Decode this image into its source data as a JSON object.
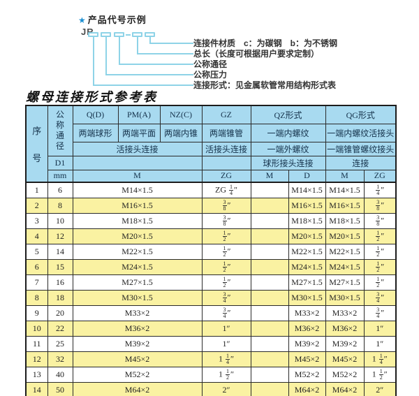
{
  "diagram": {
    "star": "★",
    "title": "产品代号示例",
    "prefix": "JR",
    "labels": [
      "连接件材质　c：为碳钢　b：为不锈钢",
      "总长（长度可根据用户要求定制）",
      "公称通径",
      "公称压力",
      "连接形式：见金属软管常用结构形式表"
    ]
  },
  "table": {
    "title": "螺母连接形式参考表",
    "header": {
      "seq_top": "序",
      "seq_bottom": "号",
      "dn": "公称通径",
      "d1": "D1",
      "mm": "mm",
      "q": "Q(D)",
      "pm": "PM(A)",
      "nz": "NZ(C)",
      "gz": "GZ",
      "qz": "QZ形式",
      "qg": "QG形式",
      "q_desc": "两端球形",
      "pm_desc": "两端平面",
      "nz_desc": "两端内锥",
      "gz_desc": "两端锥管",
      "qz_desc1": "一端内螺纹",
      "qg_desc1": "一端内螺纹活接头",
      "union_conn": "活接头连接",
      "gz_conn": "活接头连接",
      "qz_desc2": "一端外螺纹",
      "qg_desc2": "一端锥管螺纹接头",
      "qz_conn": "球形接头连接",
      "qg_conn": "连接",
      "m": "M",
      "zg": "ZG",
      "qz_m": "M",
      "qz_d": "D",
      "qg_m": "M",
      "qg_zg": "ZG"
    },
    "rows": [
      [
        "1",
        "6",
        "M14×1.5",
        "ZG 1/4″",
        "",
        "M14×1.5",
        "M14×1.5",
        "1/4″"
      ],
      [
        "2",
        "8",
        "M16×1.5",
        "3/8″",
        "",
        "M16×1.5",
        "M16×1.5",
        "3/8″"
      ],
      [
        "3",
        "10",
        "M18×1.5",
        "3/8″",
        "",
        "M18×1.5",
        "M18×1.5",
        "3/8″"
      ],
      [
        "4",
        "12",
        "M20×1.5",
        "1/2″",
        "",
        "M20×1.5",
        "M20×1.5",
        "1/2″"
      ],
      [
        "5",
        "14",
        "M22×1.5",
        "1/2″",
        "",
        "M22×1.5",
        "M22×1.5",
        "1/2″"
      ],
      [
        "6",
        "15",
        "M24×1.5",
        "1/2″",
        "",
        "M24×1.5",
        "M24×1.5",
        "1/2″"
      ],
      [
        "7",
        "16",
        "M27×1.5",
        "1/2″",
        "",
        "M27×1.5",
        "M27×1.5",
        "1/2″"
      ],
      [
        "8",
        "18",
        "M30×1.5",
        "3/4″",
        "",
        "M30×1.5",
        "M30×1.5",
        "3/4″"
      ],
      [
        "9",
        "20",
        "M33×2",
        "3/4″",
        "",
        "M33×2",
        "M33×2",
        "3/4″"
      ],
      [
        "10",
        "22",
        "M36×2",
        "1″",
        "",
        "M36×2",
        "M36×2",
        "1″"
      ],
      [
        "11",
        "25",
        "M39×2",
        "1″",
        "",
        "M39×2",
        "M39×2",
        "1″"
      ],
      [
        "12",
        "32",
        "M45×2",
        "1 1/4″",
        "",
        "M45×2",
        "M45×2",
        "1 1/4″"
      ],
      [
        "13",
        "40",
        "M52×2",
        "1 1/2″",
        "",
        "M52×2",
        "M52×2",
        "1 1/2″"
      ],
      [
        "14",
        "50",
        "M64×2",
        "2″",
        "",
        "M64×2",
        "M64×2",
        "2″"
      ]
    ]
  },
  "colors": {
    "header_blue": "#a8daf0",
    "row_yellow": "#faf2a2",
    "diagram_line": "#8ed3e7",
    "star_blue": "#1b8fd2",
    "border": "#1c1c1c"
  }
}
